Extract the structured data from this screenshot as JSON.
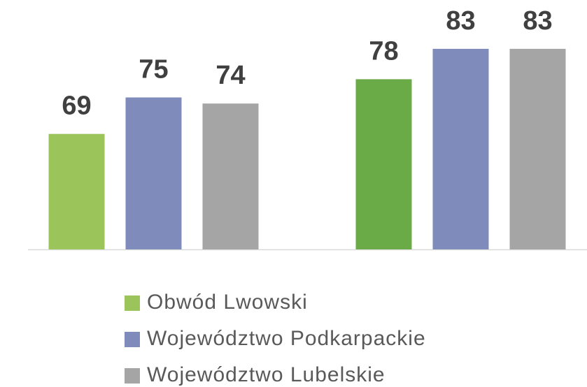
{
  "chart_data": {
    "type": "bar",
    "categories": [
      null,
      null
    ],
    "series": [
      {
        "name": "Obwód Lwowski",
        "color": "#9bc45a",
        "point_colors": [
          "#9bc45a",
          "#6aab48"
        ],
        "values": [
          69,
          78
        ]
      },
      {
        "name": "Województwo Podkarpackie",
        "color": "#7f8bbb",
        "values": [
          75,
          83
        ]
      },
      {
        "name": "Województwo Lubelskie",
        "color": "#a5a5a5",
        "values": [
          74,
          83
        ]
      }
    ],
    "ylim": [
      50,
      90
    ],
    "data_labels": true,
    "legend": "bottom"
  }
}
